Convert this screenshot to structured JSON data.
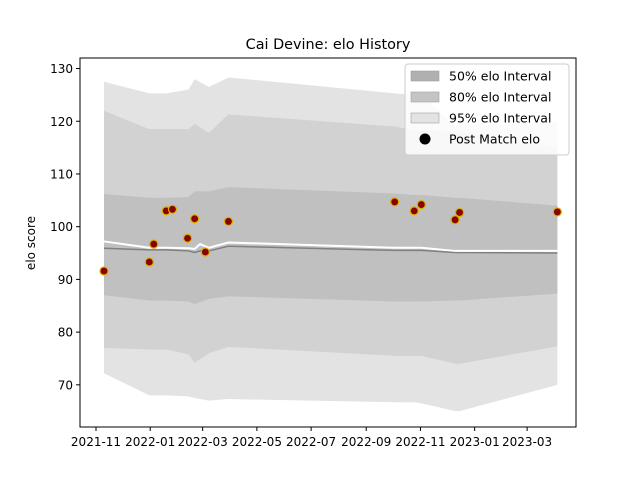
{
  "chart_data": {
    "type": "scatter",
    "title": "Cai Devine: elo History",
    "xlabel": "",
    "ylabel": "elo score",
    "xlim": [
      "2021-10-14",
      "2023-04-25"
    ],
    "ylim": [
      62,
      132
    ],
    "x_ticks": [
      "2021-11",
      "2022-01",
      "2022-03",
      "2022-05",
      "2022-07",
      "2022-09",
      "2022-11",
      "2023-01",
      "2023-03"
    ],
    "y_ticks": [
      70,
      80,
      90,
      100,
      110,
      120,
      130
    ],
    "grid": false,
    "legend": {
      "position": "top-right",
      "entries": [
        {
          "label": "50% elo Interval",
          "color": "#b0b0b0",
          "kind": "patch"
        },
        {
          "label": "80% elo Interval",
          "color": "#c4c4c4",
          "kind": "patch"
        },
        {
          "label": "95% elo Interval",
          "color": "#e3e3e3",
          "kind": "patch"
        },
        {
          "label": "Post Match elo",
          "color": "#000000",
          "kind": "dot"
        }
      ]
    },
    "band_dates": [
      "2021-11-10",
      "2021-12-31",
      "2022-01-19",
      "2022-02-13",
      "2022-02-20",
      "2022-03-08",
      "2022-03-30",
      "2022-10-03",
      "2022-10-25",
      "2022-11-02",
      "2022-12-10",
      "2022-12-15",
      "2023-04-04"
    ],
    "bands": {
      "p95_upper": [
        127.5,
        125.3,
        125.3,
        126.0,
        128.0,
        126.5,
        128.3,
        125.3,
        125.0,
        125.0,
        119.0,
        119.0,
        120.0
      ],
      "p80_upper": [
        122.0,
        118.5,
        118.5,
        118.5,
        119.5,
        117.8,
        121.3,
        119.0,
        118.3,
        118.3,
        118.0,
        118.0,
        115.0
      ],
      "p50_upper": [
        106.2,
        105.5,
        105.5,
        105.6,
        106.7,
        106.7,
        107.5,
        106.3,
        106.0,
        106.0,
        105.5,
        105.5,
        104.0
      ],
      "p50_lower": [
        87.0,
        86.0,
        86.0,
        85.8,
        85.3,
        86.3,
        86.8,
        85.8,
        85.8,
        85.8,
        86.0,
        86.0,
        87.3
      ],
      "p80_lower": [
        77.0,
        76.7,
        76.7,
        75.8,
        74.2,
        76.0,
        77.2,
        75.5,
        75.5,
        75.5,
        74.0,
        74.0,
        77.3
      ],
      "p95_lower": [
        72.2,
        68.0,
        68.0,
        67.8,
        67.5,
        67.0,
        67.3,
        66.7,
        66.7,
        66.5,
        65.0,
        65.0,
        70.0
      ]
    },
    "mean_line": {
      "color": "#ffffff",
      "dates": [
        "2021-11-10",
        "2021-12-31",
        "2022-01-19",
        "2022-02-13",
        "2022-02-20",
        "2022-02-26",
        "2022-03-08",
        "2022-03-30",
        "2022-10-03",
        "2022-11-02",
        "2022-12-10",
        "2023-04-04"
      ],
      "values": [
        97.2,
        96.0,
        96.0,
        95.9,
        95.8,
        96.7,
        96.0,
        97.0,
        96.0,
        96.0,
        95.4,
        95.4
      ]
    },
    "median_line": {
      "color": "#808080",
      "dates": [
        "2021-11-10",
        "2021-12-31",
        "2022-01-19",
        "2022-02-13",
        "2022-02-20",
        "2022-02-26",
        "2022-03-08",
        "2022-03-30",
        "2022-10-03",
        "2022-11-02",
        "2022-12-10",
        "2023-04-04"
      ],
      "values": [
        95.9,
        95.6,
        95.6,
        95.4,
        95.1,
        95.4,
        95.4,
        96.3,
        95.5,
        95.5,
        95.1,
        95.0
      ]
    },
    "series": [
      {
        "name": "Post Match elo",
        "color": "#8b0000",
        "edge_color": "#d4b000",
        "dates": [
          "2021-11-10",
          "2021-12-31",
          "2022-01-05",
          "2022-01-19",
          "2022-01-26",
          "2022-02-12",
          "2022-02-20",
          "2022-03-04",
          "2022-03-30",
          "2022-10-03",
          "2022-10-25",
          "2022-11-02",
          "2022-12-10",
          "2022-12-15",
          "2023-04-04"
        ],
        "values": [
          91.6,
          93.3,
          96.7,
          103.0,
          103.3,
          97.8,
          101.5,
          95.2,
          101.0,
          104.7,
          103.0,
          104.2,
          101.3,
          102.7,
          102.8
        ]
      }
    ]
  }
}
